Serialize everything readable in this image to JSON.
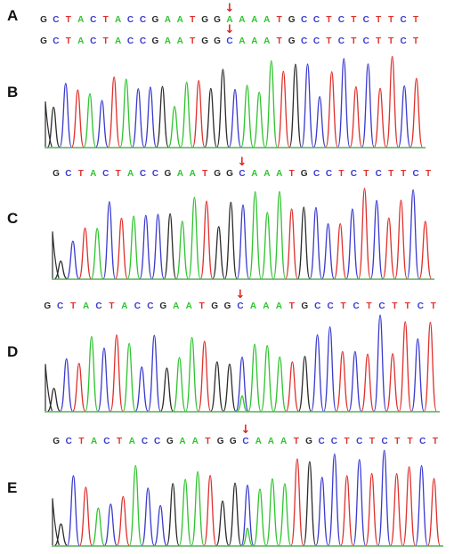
{
  "colors": {
    "A": "#2ec42e",
    "C": "#3a3ad0",
    "G": "#2b2b2b",
    "T": "#e0302c",
    "arrow": "#e0201c",
    "baseline": "#3a9a3a"
  },
  "labels": [
    "A",
    "B",
    "C",
    "D",
    "E"
  ],
  "arrow_glyph": "↓",
  "sequences": {
    "reference": "GCTACTACCGAATGGAAAATGCCTCTCTTCT",
    "b": "GCTACTACCGAATGGCAAATGCCTCTCTTCT",
    "c": "GCTACTACCGAATGGCAAATGCCTCTCTTCT",
    "d": "GCTACTACCGAATGGCAAATGCCTCTCTTCT",
    "e": "GCTACTACCGAATGGCAAATGCCTCTCTTCT"
  },
  "mutation_index": 15
}
